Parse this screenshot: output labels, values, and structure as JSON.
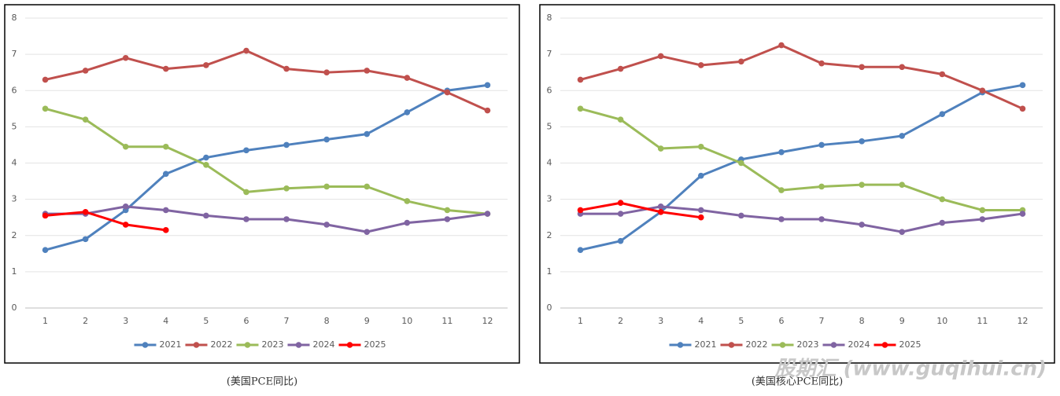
{
  "chart_data": [
    {
      "type": "line",
      "caption": "(美国PCE同比)",
      "categories": [
        "1",
        "2",
        "3",
        "4",
        "5",
        "6",
        "7",
        "8",
        "9",
        "10",
        "11",
        "12"
      ],
      "ylim": [
        0,
        8
      ],
      "yticks": [
        0,
        1,
        2,
        3,
        4,
        5,
        6,
        7,
        8
      ],
      "grid": true,
      "legend": "bottom",
      "series": [
        {
          "name": "2021",
          "color": "#4f81bd",
          "values": [
            1.6,
            1.9,
            2.7,
            3.7,
            4.15,
            4.35,
            4.5,
            4.65,
            4.8,
            5.4,
            6.0,
            6.15
          ]
        },
        {
          "name": "2022",
          "color": "#c0504d",
          "values": [
            6.3,
            6.55,
            6.9,
            6.6,
            6.7,
            7.1,
            6.6,
            6.5,
            6.55,
            6.35,
            5.95,
            5.45
          ]
        },
        {
          "name": "2023",
          "color": "#9bbb59",
          "values": [
            5.5,
            5.2,
            4.45,
            4.45,
            3.95,
            3.2,
            3.3,
            3.35,
            3.35,
            2.95,
            2.7,
            2.6
          ]
        },
        {
          "name": "2024",
          "color": "#8064a2",
          "values": [
            2.6,
            2.6,
            2.8,
            2.7,
            2.55,
            2.45,
            2.45,
            2.3,
            2.1,
            2.35,
            2.45,
            2.6
          ]
        },
        {
          "name": "2025",
          "color": "#ff0000",
          "values": [
            2.55,
            2.65,
            2.3,
            2.15,
            null,
            null,
            null,
            null,
            null,
            null,
            null,
            null
          ]
        }
      ]
    },
    {
      "type": "line",
      "caption": "(美国核心PCE同比)",
      "categories": [
        "1",
        "2",
        "3",
        "4",
        "5",
        "6",
        "7",
        "8",
        "9",
        "10",
        "11",
        "12"
      ],
      "ylim": [
        0,
        8
      ],
      "yticks": [
        0,
        1,
        2,
        3,
        4,
        5,
        6,
        7,
        8
      ],
      "grid": true,
      "legend": "bottom",
      "series": [
        {
          "name": "2021",
          "color": "#4f81bd",
          "values": [
            1.6,
            1.85,
            2.65,
            3.65,
            4.1,
            4.3,
            4.5,
            4.6,
            4.75,
            5.35,
            5.95,
            6.15
          ]
        },
        {
          "name": "2022",
          "color": "#c0504d",
          "values": [
            6.3,
            6.6,
            6.95,
            6.7,
            6.8,
            7.25,
            6.75,
            6.65,
            6.65,
            6.45,
            6.0,
            5.5
          ]
        },
        {
          "name": "2023",
          "color": "#9bbb59",
          "values": [
            5.5,
            5.2,
            4.4,
            4.45,
            4.0,
            3.25,
            3.35,
            3.4,
            3.4,
            3.0,
            2.7,
            2.7
          ]
        },
        {
          "name": "2024",
          "color": "#8064a2",
          "values": [
            2.6,
            2.6,
            2.8,
            2.7,
            2.55,
            2.45,
            2.45,
            2.3,
            2.1,
            2.35,
            2.45,
            2.6
          ]
        },
        {
          "name": "2025",
          "color": "#ff0000",
          "values": [
            2.7,
            2.9,
            2.65,
            2.5,
            null,
            null,
            null,
            null,
            null,
            null,
            null,
            null
          ]
        }
      ]
    }
  ],
  "watermark": "股期汇 (www.guqihui.cn)"
}
